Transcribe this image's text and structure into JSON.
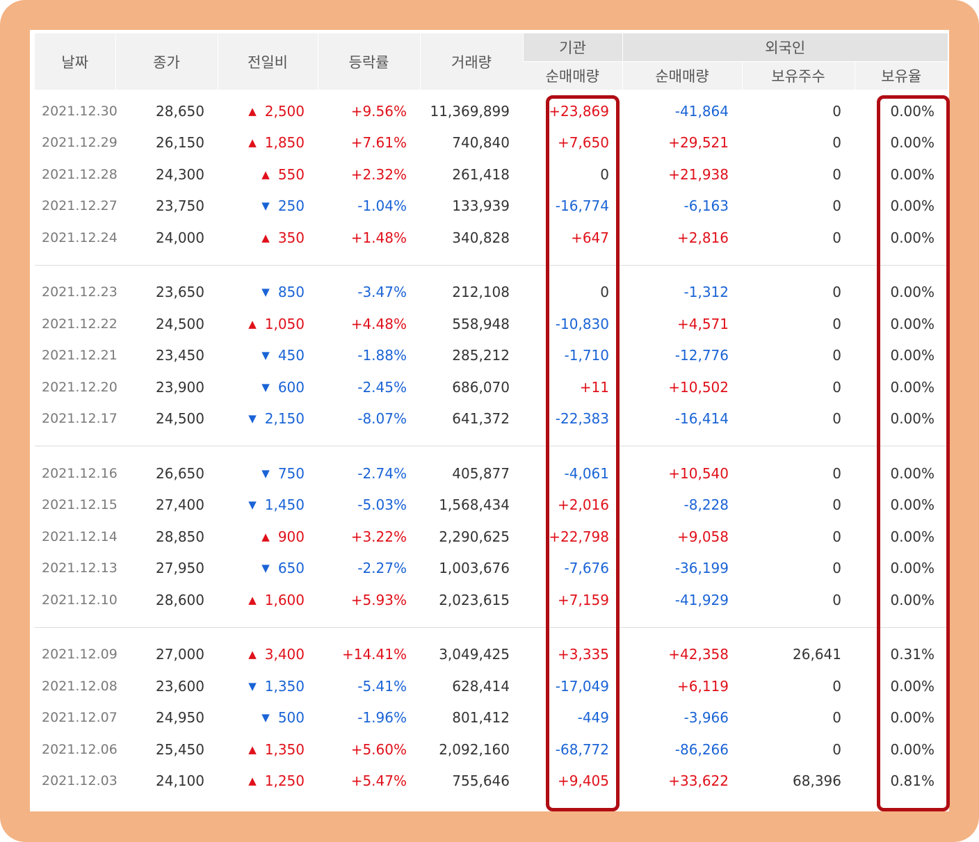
{
  "table": {
    "headers": {
      "date": "날짜",
      "close": "종가",
      "change": "전일비",
      "rate": "등락률",
      "volume": "거래량",
      "inst_group": "기관",
      "foreign_group": "외국인",
      "inst_net": "순매매량",
      "foreign_net": "순매매량",
      "foreign_shares": "보유주수",
      "foreign_ratio": "보유율"
    },
    "groups": [
      [
        {
          "date": "2021.12.30",
          "close": "28,650",
          "dir": "up",
          "arrow": "▲",
          "change": "2,500",
          "rate": "+9.56%",
          "volume": "11,369,899",
          "inst": "+23,869",
          "foreign": "-41,864",
          "shares": "0",
          "ratio": "0.00%"
        },
        {
          "date": "2021.12.29",
          "close": "26,150",
          "dir": "up",
          "arrow": "▲",
          "change": "1,850",
          "rate": "+7.61%",
          "volume": "740,840",
          "inst": "+7,650",
          "foreign": "+29,521",
          "shares": "0",
          "ratio": "0.00%"
        },
        {
          "date": "2021.12.28",
          "close": "24,300",
          "dir": "up",
          "arrow": "▲",
          "change": "550",
          "rate": "+2.32%",
          "volume": "261,418",
          "inst": "0",
          "foreign": "+21,938",
          "shares": "0",
          "ratio": "0.00%"
        },
        {
          "date": "2021.12.27",
          "close": "23,750",
          "dir": "down",
          "arrow": "▼",
          "change": "250",
          "rate": "-1.04%",
          "volume": "133,939",
          "inst": "-16,774",
          "foreign": "-6,163",
          "shares": "0",
          "ratio": "0.00%"
        },
        {
          "date": "2021.12.24",
          "close": "24,000",
          "dir": "up",
          "arrow": "▲",
          "change": "350",
          "rate": "+1.48%",
          "volume": "340,828",
          "inst": "+647",
          "foreign": "+2,816",
          "shares": "0",
          "ratio": "0.00%"
        }
      ],
      [
        {
          "date": "2021.12.23",
          "close": "23,650",
          "dir": "down",
          "arrow": "▼",
          "change": "850",
          "rate": "-3.47%",
          "volume": "212,108",
          "inst": "0",
          "foreign": "-1,312",
          "shares": "0",
          "ratio": "0.00%"
        },
        {
          "date": "2021.12.22",
          "close": "24,500",
          "dir": "up",
          "arrow": "▲",
          "change": "1,050",
          "rate": "+4.48%",
          "volume": "558,948",
          "inst": "-10,830",
          "foreign": "+4,571",
          "shares": "0",
          "ratio": "0.00%"
        },
        {
          "date": "2021.12.21",
          "close": "23,450",
          "dir": "down",
          "arrow": "▼",
          "change": "450",
          "rate": "-1.88%",
          "volume": "285,212",
          "inst": "-1,710",
          "foreign": "-12,776",
          "shares": "0",
          "ratio": "0.00%"
        },
        {
          "date": "2021.12.20",
          "close": "23,900",
          "dir": "down",
          "arrow": "▼",
          "change": "600",
          "rate": "-2.45%",
          "volume": "686,070",
          "inst": "+11",
          "foreign": "+10,502",
          "shares": "0",
          "ratio": "0.00%"
        },
        {
          "date": "2021.12.17",
          "close": "24,500",
          "dir": "down",
          "arrow": "▼",
          "change": "2,150",
          "rate": "-8.07%",
          "volume": "641,372",
          "inst": "-22,383",
          "foreign": "-16,414",
          "shares": "0",
          "ratio": "0.00%"
        }
      ],
      [
        {
          "date": "2021.12.16",
          "close": "26,650",
          "dir": "down",
          "arrow": "▼",
          "change": "750",
          "rate": "-2.74%",
          "volume": "405,877",
          "inst": "-4,061",
          "foreign": "+10,540",
          "shares": "0",
          "ratio": "0.00%"
        },
        {
          "date": "2021.12.15",
          "close": "27,400",
          "dir": "down",
          "arrow": "▼",
          "change": "1,450",
          "rate": "-5.03%",
          "volume": "1,568,434",
          "inst": "+2,016",
          "foreign": "-8,228",
          "shares": "0",
          "ratio": "0.00%"
        },
        {
          "date": "2021.12.14",
          "close": "28,850",
          "dir": "up",
          "arrow": "▲",
          "change": "900",
          "rate": "+3.22%",
          "volume": "2,290,625",
          "inst": "+22,798",
          "foreign": "+9,058",
          "shares": "0",
          "ratio": "0.00%"
        },
        {
          "date": "2021.12.13",
          "close": "27,950",
          "dir": "down",
          "arrow": "▼",
          "change": "650",
          "rate": "-2.27%",
          "volume": "1,003,676",
          "inst": "-7,676",
          "foreign": "-36,199",
          "shares": "0",
          "ratio": "0.00%"
        },
        {
          "date": "2021.12.10",
          "close": "28,600",
          "dir": "up",
          "arrow": "▲",
          "change": "1,600",
          "rate": "+5.93%",
          "volume": "2,023,615",
          "inst": "+7,159",
          "foreign": "-41,929",
          "shares": "0",
          "ratio": "0.00%"
        }
      ],
      [
        {
          "date": "2021.12.09",
          "close": "27,000",
          "dir": "up",
          "arrow": "▲",
          "change": "3,400",
          "rate": "+14.41%",
          "volume": "3,049,425",
          "inst": "+3,335",
          "foreign": "+42,358",
          "shares": "26,641",
          "ratio": "0.31%"
        },
        {
          "date": "2021.12.08",
          "close": "23,600",
          "dir": "down",
          "arrow": "▼",
          "change": "1,350",
          "rate": "-5.41%",
          "volume": "628,414",
          "inst": "-17,049",
          "foreign": "+6,119",
          "shares": "0",
          "ratio": "0.00%"
        },
        {
          "date": "2021.12.07",
          "close": "24,950",
          "dir": "down",
          "arrow": "▼",
          "change": "500",
          "rate": "-1.96%",
          "volume": "801,412",
          "inst": "-449",
          "foreign": "-3,966",
          "shares": "0",
          "ratio": "0.00%"
        },
        {
          "date": "2021.12.06",
          "close": "25,450",
          "dir": "up",
          "arrow": "▲",
          "change": "1,350",
          "rate": "+5.60%",
          "volume": "2,092,160",
          "inst": "-68,772",
          "foreign": "-86,266",
          "shares": "0",
          "ratio": "0.00%"
        },
        {
          "date": "2021.12.03",
          "close": "24,100",
          "dir": "up",
          "arrow": "▲",
          "change": "1,250",
          "rate": "+5.47%",
          "volume": "755,646",
          "inst": "+9,405",
          "foreign": "+33,622",
          "shares": "68,396",
          "ratio": "0.81%"
        }
      ]
    ]
  },
  "colors": {
    "up": "#e0101a",
    "down": "#1a63d6",
    "frame": "#f3b384",
    "highlight": "#b00c14"
  }
}
